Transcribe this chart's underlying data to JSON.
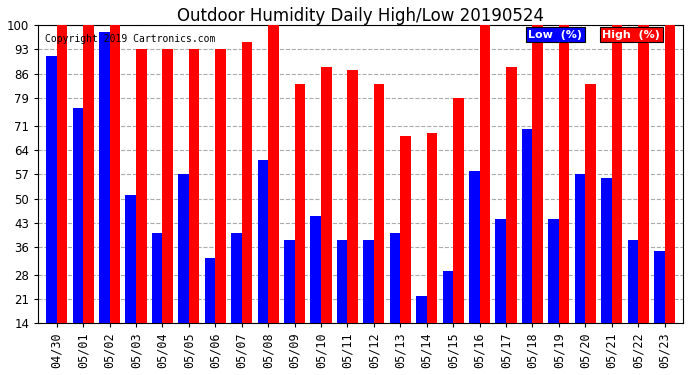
{
  "title": "Outdoor Humidity Daily High/Low 20190524",
  "copyright": "Copyright 2019 Cartronics.com",
  "ylim": [
    14,
    100
  ],
  "yticks": [
    14,
    21,
    28,
    36,
    43,
    50,
    57,
    64,
    71,
    79,
    86,
    93,
    100
  ],
  "background_color": "#ffffff",
  "grid_color": "#aaaaaa",
  "dates": [
    "04/30",
    "05/01",
    "05/02",
    "05/03",
    "05/04",
    "05/05",
    "05/06",
    "05/07",
    "05/08",
    "05/09",
    "05/10",
    "05/11",
    "05/12",
    "05/13",
    "05/14",
    "05/15",
    "05/16",
    "05/17",
    "05/18",
    "05/19",
    "05/20",
    "05/21",
    "05/22",
    "05/23"
  ],
  "high": [
    100,
    100,
    100,
    93,
    93,
    93,
    93,
    95,
    100,
    83,
    88,
    87,
    83,
    68,
    69,
    79,
    100,
    88,
    100,
    100,
    83,
    100,
    100,
    100
  ],
  "low": [
    91,
    76,
    98,
    51,
    40,
    57,
    33,
    40,
    61,
    38,
    45,
    38,
    38,
    40,
    22,
    29,
    58,
    44,
    70,
    44,
    57,
    56,
    38,
    35
  ],
  "high_color": "#ff0000",
  "low_color": "#0000ff",
  "bar_width": 0.4,
  "title_fontsize": 12,
  "tick_fontsize": 8.5,
  "bar_bottom": 14
}
